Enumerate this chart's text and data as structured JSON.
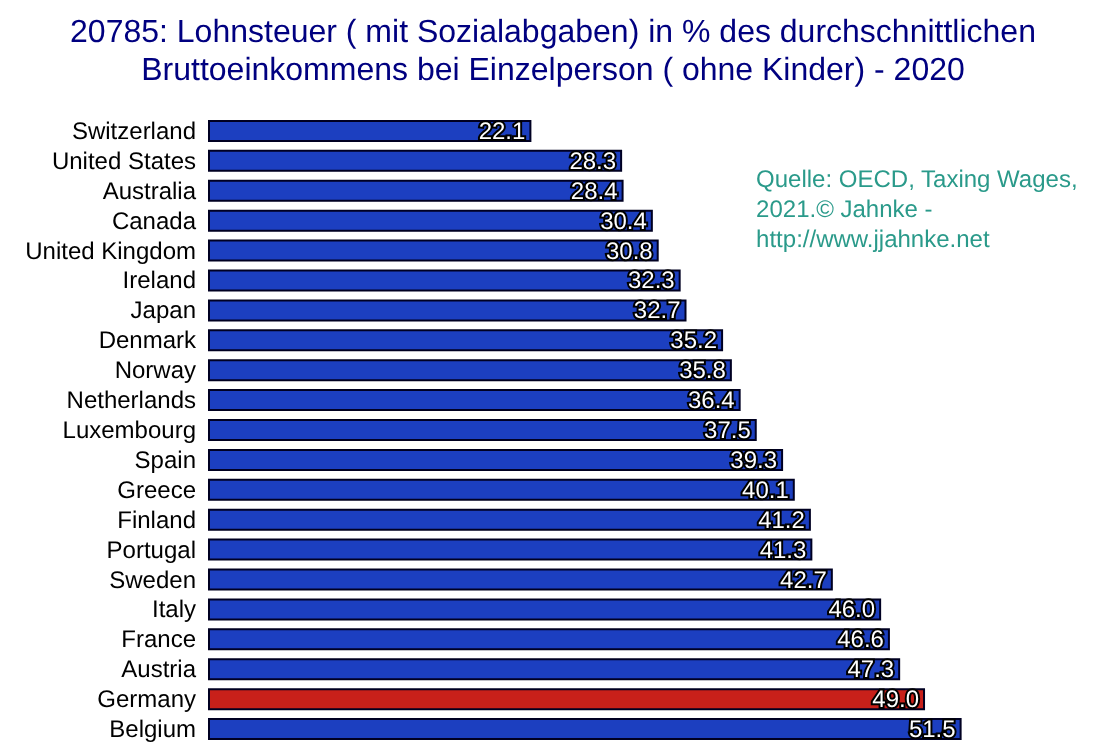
{
  "chart_data": {
    "type": "bar",
    "orientation": "horizontal",
    "title": "20785: Lohnsteuer ( mit Sozialabgaben) in % des durchschnittlichen\nBruttoeinkommens bei Einzelperson ( ohne Kinder) - 2020",
    "categories": [
      "Switzerland",
      "United States",
      "Australia",
      "Canada",
      "United Kingdom",
      "Ireland",
      "Japan",
      "Denmark",
      "Norway",
      "Netherlands",
      "Luxembourg",
      "Spain",
      "Greece",
      "Finland",
      "Portugal",
      "Sweden",
      "Italy",
      "France",
      "Austria",
      "Germany",
      "Belgium"
    ],
    "values": [
      22.1,
      28.3,
      28.4,
      30.4,
      30.8,
      32.3,
      32.7,
      35.2,
      35.8,
      36.4,
      37.5,
      39.3,
      40.1,
      41.2,
      41.3,
      42.7,
      46.0,
      46.6,
      47.3,
      49.0,
      51.5
    ],
    "value_labels": [
      "22.1",
      "28.3",
      "28.4",
      "30.4",
      "30.8",
      "32.3",
      "32.7",
      "35.2",
      "35.8",
      "36.4",
      "37.5",
      "39.3",
      "40.1",
      "41.2",
      "41.3",
      "42.7",
      "46.0",
      "46.6",
      "47.3",
      "49.0",
      "51.5"
    ],
    "colors": [
      "#1c3fc0",
      "#1c3fc0",
      "#1c3fc0",
      "#1c3fc0",
      "#1c3fc0",
      "#1c3fc0",
      "#1c3fc0",
      "#1c3fc0",
      "#1c3fc0",
      "#1c3fc0",
      "#1c3fc0",
      "#1c3fc0",
      "#1c3fc0",
      "#1c3fc0",
      "#1c3fc0",
      "#1c3fc0",
      "#1c3fc0",
      "#1c3fc0",
      "#1c3fc0",
      "#c8201a",
      "#1c3fc0"
    ],
    "tick_labels": "y",
    "annotations": [
      "Quelle: OECD, Taxing Wages,\n2021.© Jahnke -\nhttp://www.jjahnke.net"
    ]
  }
}
